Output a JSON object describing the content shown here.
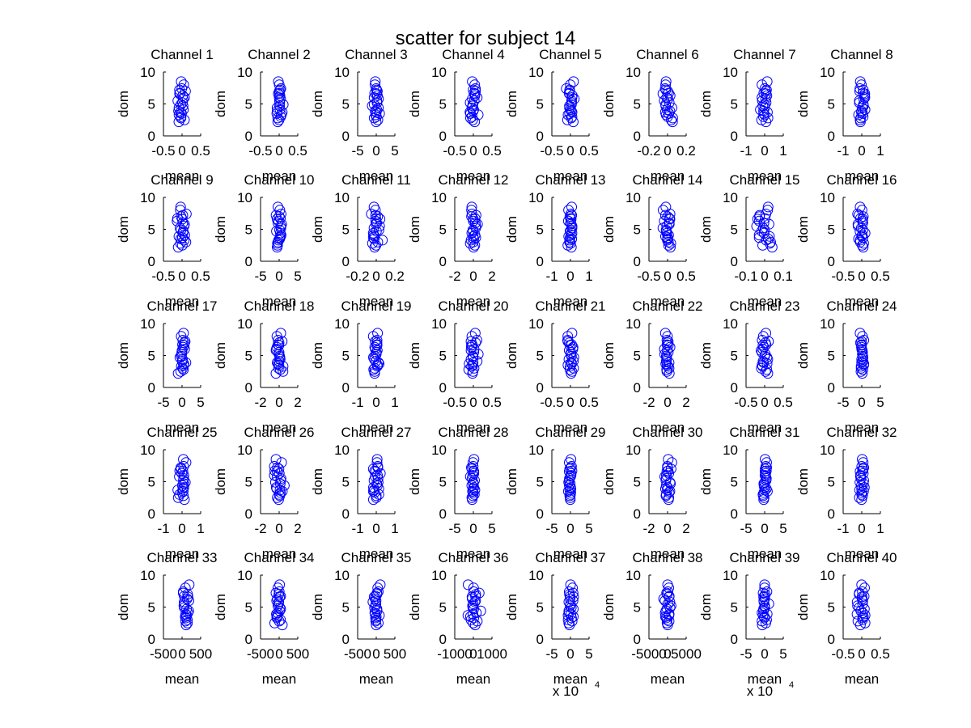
{
  "figure": {
    "title": "scatter for subject 14",
    "xlabel": "mean",
    "ylabel": "dom"
  },
  "chart_data": {
    "type": "scatter",
    "title": "scatter for subject 14",
    "ylim": [
      0,
      10
    ],
    "yticks": [
      0,
      5,
      10
    ],
    "marker": "circle-open",
    "marker_color": "#0000ff",
    "grid": false,
    "dom_values": [
      7.2,
      6.7,
      8.0,
      5.8,
      4.4,
      3.5,
      3.9,
      2.5,
      5.2,
      6.3,
      7.4,
      4.9,
      3.0,
      2.2,
      6.0,
      8.5,
      4.1,
      3.3,
      5.5,
      7.0,
      2.8,
      4.7,
      6.6,
      3.7
    ],
    "panels": [
      {
        "title": "Channel 1",
        "xticks": [
          "-0.5",
          "0",
          "0.5"
        ],
        "xlim": [
          -0.5,
          0.5
        ],
        "spread": 0.18,
        "offset": 0
      },
      {
        "title": "Channel 2",
        "xticks": [
          "-0.5",
          "0",
          "0.5"
        ],
        "xlim": [
          -0.5,
          0.5
        ],
        "spread": 0.15,
        "offset": 0
      },
      {
        "title": "Channel 3",
        "xticks": [
          "-5",
          "0",
          "5"
        ],
        "xlim": [
          -5,
          5
        ],
        "spread": 1.6,
        "offset": 0
      },
      {
        "title": "Channel 4",
        "xticks": [
          "-0.5",
          "0",
          "0.5"
        ],
        "xlim": [
          -0.5,
          0.5
        ],
        "spread": 0.17,
        "offset": 0
      },
      {
        "title": "Channel 5",
        "xticks": [
          "-0.5",
          "0",
          "0.5"
        ],
        "xlim": [
          -0.5,
          0.5
        ],
        "spread": 0.17,
        "offset": 0
      },
      {
        "title": "Channel 6",
        "xticks": [
          "-0.2",
          "0",
          "0.2"
        ],
        "xlim": [
          -0.2,
          0.2
        ],
        "spread": 0.08,
        "offset": 0
      },
      {
        "title": "Channel 7",
        "xticks": [
          "-1",
          "0",
          "1"
        ],
        "xlim": [
          -1,
          1
        ],
        "spread": 0.3,
        "offset": 0
      },
      {
        "title": "Channel 8",
        "xticks": [
          "-1",
          "0",
          "1"
        ],
        "xlim": [
          -1,
          1
        ],
        "spread": 0.35,
        "offset": 0
      },
      {
        "title": "Channel 9",
        "xticks": [
          "-0.5",
          "0",
          "0.5"
        ],
        "xlim": [
          -0.5,
          0.5
        ],
        "spread": 0.16,
        "offset": 0
      },
      {
        "title": "Channel 10",
        "xticks": [
          "-5",
          "0",
          "5"
        ],
        "xlim": [
          -5,
          5
        ],
        "spread": 1.3,
        "offset": 0
      },
      {
        "title": "Channel 11",
        "xticks": [
          "-0.2",
          "0",
          "0.2"
        ],
        "xlim": [
          -0.2,
          0.2
        ],
        "spread": 0.09,
        "offset": 0
      },
      {
        "title": "Channel 12",
        "xticks": [
          "-2",
          "0",
          "2"
        ],
        "xlim": [
          -2,
          2
        ],
        "spread": 0.6,
        "offset": 0
      },
      {
        "title": "Channel 13",
        "xticks": [
          "-1",
          "0",
          "1"
        ],
        "xlim": [
          -1,
          1
        ],
        "spread": 0.18,
        "offset": 0
      },
      {
        "title": "Channel 14",
        "xticks": [
          "-0.5",
          "0",
          "0.5"
        ],
        "xlim": [
          -0.5,
          0.5
        ],
        "spread": 0.15,
        "offset": 0
      },
      {
        "title": "Channel 15",
        "xticks": [
          "-0.1",
          "0",
          "0.1"
        ],
        "xlim": [
          -0.1,
          0.1
        ],
        "spread": 0.055,
        "offset": 0
      },
      {
        "title": "Channel 16",
        "xticks": [
          "-0.5",
          "0",
          "0.5"
        ],
        "xlim": [
          -0.5,
          0.5
        ],
        "spread": 0.13,
        "offset": 0
      },
      {
        "title": "Channel 17",
        "xticks": [
          "-5",
          "0",
          "5"
        ],
        "xlim": [
          -5,
          5
        ],
        "spread": 1.3,
        "offset": 0
      },
      {
        "title": "Channel 18",
        "xticks": [
          "-2",
          "0",
          "2"
        ],
        "xlim": [
          -2,
          2
        ],
        "spread": 0.6,
        "offset": 0
      },
      {
        "title": "Channel 19",
        "xticks": [
          "-1",
          "0",
          "1"
        ],
        "xlim": [
          -1,
          1
        ],
        "spread": 0.25,
        "offset": 0
      },
      {
        "title": "Channel 20",
        "xticks": [
          "-0.5",
          "0",
          "0.5"
        ],
        "xlim": [
          -0.5,
          0.5
        ],
        "spread": 0.19,
        "offset": 0
      },
      {
        "title": "Channel 21",
        "xticks": [
          "-0.5",
          "0",
          "0.5"
        ],
        "xlim": [
          -0.5,
          0.5
        ],
        "spread": 0.16,
        "offset": 0
      },
      {
        "title": "Channel 22",
        "xticks": [
          "-2",
          "0",
          "2"
        ],
        "xlim": [
          -2,
          2
        ],
        "spread": 0.55,
        "offset": 0
      },
      {
        "title": "Channel 23",
        "xticks": [
          "-0.5",
          "0",
          "0.5"
        ],
        "xlim": [
          -0.5,
          0.5
        ],
        "spread": 0.15,
        "offset": 0
      },
      {
        "title": "Channel 24",
        "xticks": [
          "-5",
          "0",
          "5"
        ],
        "xlim": [
          -5,
          5
        ],
        "spread": 1.0,
        "offset": 0
      },
      {
        "title": "Channel 25",
        "xticks": [
          "-1",
          "0",
          "1"
        ],
        "xlim": [
          -1,
          1
        ],
        "spread": 0.35,
        "offset": 0
      },
      {
        "title": "Channel 26",
        "xticks": [
          "-2",
          "0",
          "2"
        ],
        "xlim": [
          -2,
          2
        ],
        "spread": 0.7,
        "offset": 0
      },
      {
        "title": "Channel 27",
        "xticks": [
          "-1",
          "0",
          "1"
        ],
        "xlim": [
          -1,
          1
        ],
        "spread": 0.3,
        "offset": 0
      },
      {
        "title": "Channel 28",
        "xticks": [
          "-5",
          "0",
          "5"
        ],
        "xlim": [
          -5,
          5
        ],
        "spread": 1.1,
        "offset": 0
      },
      {
        "title": "Channel 29",
        "xticks": [
          "-5",
          "0",
          "5"
        ],
        "xlim": [
          -5,
          5
        ],
        "spread": 1.0,
        "offset": 0
      },
      {
        "title": "Channel 30",
        "xticks": [
          "-2",
          "0",
          "2"
        ],
        "xlim": [
          -2,
          2
        ],
        "spread": 0.6,
        "offset": 0
      },
      {
        "title": "Channel 31",
        "xticks": [
          "-5",
          "0",
          "5"
        ],
        "xlim": [
          -5,
          5
        ],
        "spread": 1.0,
        "offset": 0
      },
      {
        "title": "Channel 32",
        "xticks": [
          "-1",
          "0",
          "1"
        ],
        "xlim": [
          -1,
          1
        ],
        "spread": 0.25,
        "offset": 0
      },
      {
        "title": "Channel 33",
        "xticks": [
          "-500",
          "0",
          "500"
        ],
        "xlim": [
          -500,
          500
        ],
        "spread": 150,
        "offset": 80
      },
      {
        "title": "Channel 34",
        "xticks": [
          "-500",
          "0",
          "500"
        ],
        "xlim": [
          -500,
          500
        ],
        "spread": 200,
        "offset": 0
      },
      {
        "title": "Channel 35",
        "xticks": [
          "-500",
          "0",
          "500"
        ],
        "xlim": [
          -500,
          500
        ],
        "spread": 150,
        "offset": 0
      },
      {
        "title": "Channel 36",
        "xticks": [
          "-1000",
          "0",
          "1000"
        ],
        "xlim": [
          -1000,
          1000
        ],
        "spread": 450,
        "offset": 0
      },
      {
        "title": "Channel 37",
        "xticks": [
          "-5",
          "0",
          "5"
        ],
        "xlim": [
          -5,
          5
        ],
        "spread": 1.2,
        "offset": 0,
        "xexponent": "4"
      },
      {
        "title": "Channel 38",
        "xticks": [
          "-5000",
          "0",
          "5000"
        ],
        "xlim": [
          -5000,
          5000
        ],
        "spread": 1500,
        "offset": 0
      },
      {
        "title": "Channel 39",
        "xticks": [
          "-5",
          "0",
          "5"
        ],
        "xlim": [
          -5,
          5
        ],
        "spread": 1.5,
        "offset": 0,
        "xexponent": "4"
      },
      {
        "title": "Channel 40",
        "xticks": [
          "-0.5",
          "0",
          "0.5"
        ],
        "xlim": [
          -0.5,
          0.5
        ],
        "spread": 0.18,
        "offset": 0
      }
    ],
    "exponent_label": "x 10"
  }
}
